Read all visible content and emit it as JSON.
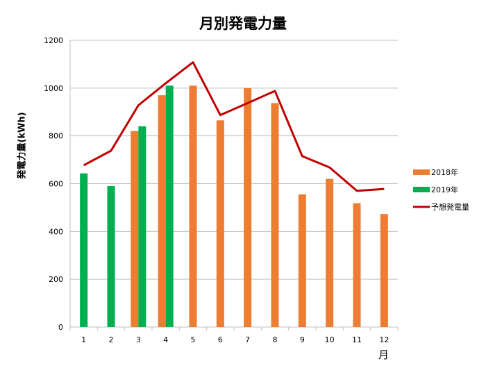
{
  "chart_data": {
    "type": "bar",
    "title": "月別発電力量",
    "xlabel": "月",
    "ylabel": "発電力量(kWh)",
    "ylim": [
      0,
      1200
    ],
    "yticks": [
      0,
      200,
      400,
      600,
      800,
      1000,
      1200
    ],
    "grid": true,
    "legend_position": "right",
    "categories": [
      "1",
      "2",
      "3",
      "4",
      "5",
      "6",
      "7",
      "8",
      "9",
      "10",
      "11",
      "12"
    ],
    "series": [
      {
        "name": "2018年",
        "type": "bar",
        "color": "#ED7D31",
        "values": [
          null,
          null,
          820,
          970,
          1010,
          865,
          1000,
          937,
          555,
          620,
          518,
          473
        ]
      },
      {
        "name": "2019年",
        "type": "bar",
        "color": "#00B050",
        "values": [
          643,
          590,
          840,
          1010,
          null,
          null,
          null,
          null,
          null,
          null,
          null,
          null
        ]
      },
      {
        "name": "予想発電量",
        "type": "line",
        "color": "#C00000",
        "values": [
          677,
          738,
          928,
          1020,
          1108,
          887,
          937,
          988,
          715,
          668,
          570,
          578
        ]
      }
    ]
  }
}
